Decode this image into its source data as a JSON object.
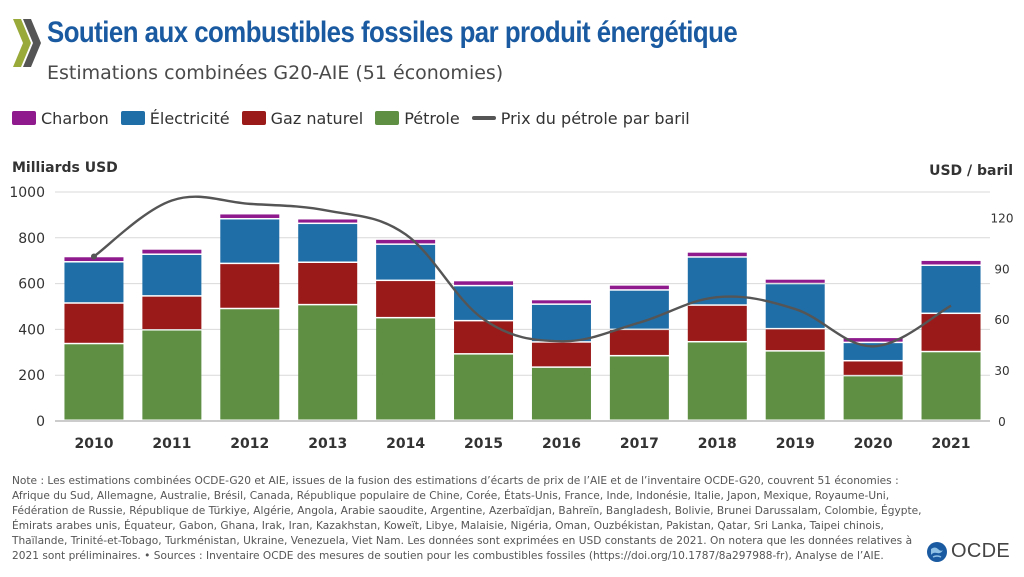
{
  "header": {
    "title": "Soutien aux combustibles fossiles par produit énergétique",
    "subtitle": "Estimations combinées G20-AIE (51 économies)"
  },
  "legend": [
    {
      "label": "Charbon",
      "color": "#8e1a8e",
      "kind": "box"
    },
    {
      "label": "Électricité",
      "color": "#1f6ea8",
      "kind": "box"
    },
    {
      "label": "Gaz naturel",
      "color": "#9a1a1a",
      "kind": "box"
    },
    {
      "label": "Pétrole",
      "color": "#5e8f43",
      "kind": "box"
    },
    {
      "label": "Prix du pétrole par baril",
      "color": "#555555",
      "kind": "line"
    }
  ],
  "chart_data": {
    "type": "bar",
    "stacked": true,
    "categories": [
      "2010",
      "2011",
      "2012",
      "2013",
      "2014",
      "2015",
      "2016",
      "2017",
      "2018",
      "2019",
      "2020",
      "2021"
    ],
    "series": [
      {
        "name": "Pétrole",
        "color": "#5e8f43",
        "values": [
          335,
          395,
          488,
          505,
          448,
          290,
          232,
          282,
          343,
          303,
          195,
          300
        ]
      },
      {
        "name": "Gaz naturel",
        "color": "#9a1a1a",
        "values": [
          177,
          148,
          197,
          185,
          163,
          145,
          110,
          115,
          160,
          97,
          65,
          167
        ]
      },
      {
        "name": "Électricité",
        "color": "#1f6ea8",
        "values": [
          180,
          182,
          195,
          170,
          158,
          153,
          165,
          172,
          210,
          197,
          80,
          210
        ]
      },
      {
        "name": "Charbon",
        "color": "#8e1a8e",
        "values": [
          23,
          23,
          22,
          20,
          22,
          22,
          20,
          22,
          22,
          20,
          22,
          22
        ]
      }
    ],
    "line_series": {
      "name": "Prix du pétrole par baril",
      "color": "#555555",
      "axis": "right",
      "values": [
        97,
        130,
        128,
        124,
        110,
        60,
        47,
        58,
        73,
        66,
        44,
        68
      ]
    },
    "ylabel": "Milliards USD",
    "y2label": "USD / baril",
    "ylim": [
      0,
      1000
    ],
    "yticks": [
      0,
      200,
      400,
      600,
      800,
      1000
    ],
    "y2lim": [
      0,
      135
    ],
    "y2ticks": [
      0,
      30,
      60,
      90,
      120
    ]
  },
  "note": "Note : Les estimations combinées OCDE-G20 et AIE, issues de la fusion des estimations d’écarts de prix de l’AIE et de l’inventaire OCDE-G20, couvrent 51 économies : Afrique du Sud, Allemagne, Australie, Brésil, Canada, République populaire de Chine, Corée, États-Unis, France, Inde, Indonésie, Italie, Japon, Mexique, Royaume-Uni, Fédération de Russie, République de Türkiye, Algérie, Angola, Arabie saoudite, Argentine, Azerbaïdjan, Bahreïn, Bangladesh, Bolivie, Brunei Darussalam, Colombie, Égypte, Émirats arabes unis, Équateur, Gabon, Ghana, Irak, Iran, Kazakhstan, Koweït, Libye, Malaisie, Nigéria, Oman, Ouzbékistan, Pakistan, Qatar, Sri Lanka, Taipei chinois, Thaïlande, Trinité-et-Tobago, Turkménistan, Ukraine, Venezuela, Viet Nam. Les données sont exprimées en USD constants de 2021. On notera que les données relatives à 2021 sont préliminaires. • Sources : Inventaire OCDE des mesures de soutien pour les combustibles fossiles (https://doi.org/10.1787/8a297988-fr), Analyse de l’AIE.",
  "brand": {
    "name": "OCDE",
    "color": "#1a5aa0"
  }
}
